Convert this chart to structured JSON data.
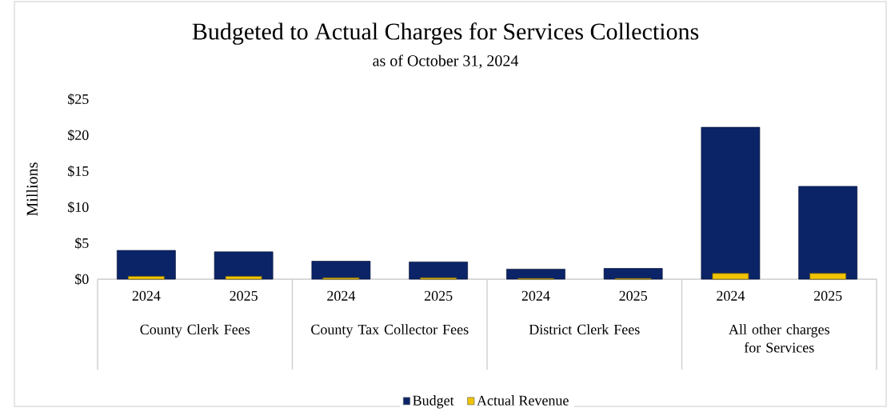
{
  "chart_data": {
    "type": "bar",
    "title": "Budgeted to Actual Charges for Services Collections",
    "subtitle": "as of October 31, 2024",
    "ylabel": "Millions",
    "categories": [
      "2024",
      "2025",
      "2024",
      "2025",
      "2024",
      "2025",
      "2024",
      "2025"
    ],
    "annotations": [
      "County Clerk Fees",
      "County Tax Collector Fees",
      "District Clerk Fees",
      "All other charges for Services"
    ],
    "series": [
      {
        "name": "Budget",
        "color": "#0b2468",
        "values": [
          4.0,
          3.8,
          2.5,
          2.4,
          1.4,
          1.5,
          21.1,
          12.9
        ]
      },
      {
        "name": "Actual Revenue",
        "color": "#f0c400",
        "values": [
          0.4,
          0.4,
          0.2,
          0.2,
          0.1,
          0.1,
          0.8,
          0.8
        ]
      }
    ],
    "ylim": [
      0,
      25
    ],
    "yticks": [
      {
        "value": 0,
        "label": "$0"
      },
      {
        "value": 5,
        "label": "$5"
      },
      {
        "value": 10,
        "label": "$10"
      },
      {
        "value": 15,
        "label": "$15"
      },
      {
        "value": 20,
        "label": "$20"
      },
      {
        "value": 25,
        "label": "$25"
      }
    ],
    "legend": "bottom"
  }
}
